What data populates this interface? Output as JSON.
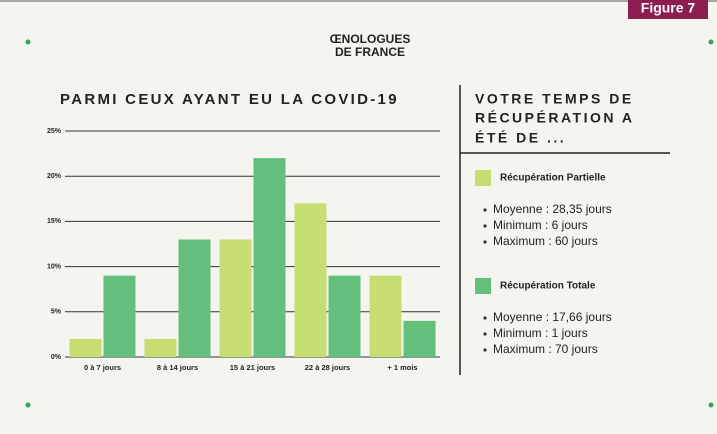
{
  "figure_label": "Figure 7",
  "logo": [
    "ŒNOLOGUES",
    "DE FRANCE"
  ],
  "chart_data": {
    "type": "bar",
    "title": "PARMI CEUX AYANT EU LA COVID-19",
    "side_title": [
      "VOTRE TEMPS DE",
      "RÉCUPÉRATION A",
      "ÉTÉ DE ..."
    ],
    "categories": [
      "0 à 7 jours",
      "8 à 14 jours",
      "15 à 21 jours",
      "22 à 28 jours",
      "+ 1 mois"
    ],
    "series": [
      {
        "name": "Récupération Partielle",
        "color": "#c6dd72",
        "values": [
          2,
          2,
          13,
          17,
          9
        ],
        "stats": [
          "Moyenne : 28,35 jours",
          "Minimum : 6 jours",
          "Maximum : 60 jours"
        ]
      },
      {
        "name": "Récupération Totale",
        "color": "#63c07c",
        "values": [
          9,
          13,
          22,
          9,
          4
        ],
        "stats": [
          "Moyenne : 17,66 jours",
          "Minimum : 1 jours",
          "Maximum : 70 jours"
        ]
      }
    ],
    "ylim": [
      0,
      25
    ],
    "yticks": [
      {
        "value": 0,
        "label": "0%"
      },
      {
        "value": 5,
        "label": "5%"
      },
      {
        "value": 10,
        "label": "10%"
      },
      {
        "value": 15,
        "label": "15%"
      },
      {
        "value": 20,
        "label": "20%"
      },
      {
        "value": 25,
        "label": "25%"
      }
    ],
    "grid": true
  }
}
